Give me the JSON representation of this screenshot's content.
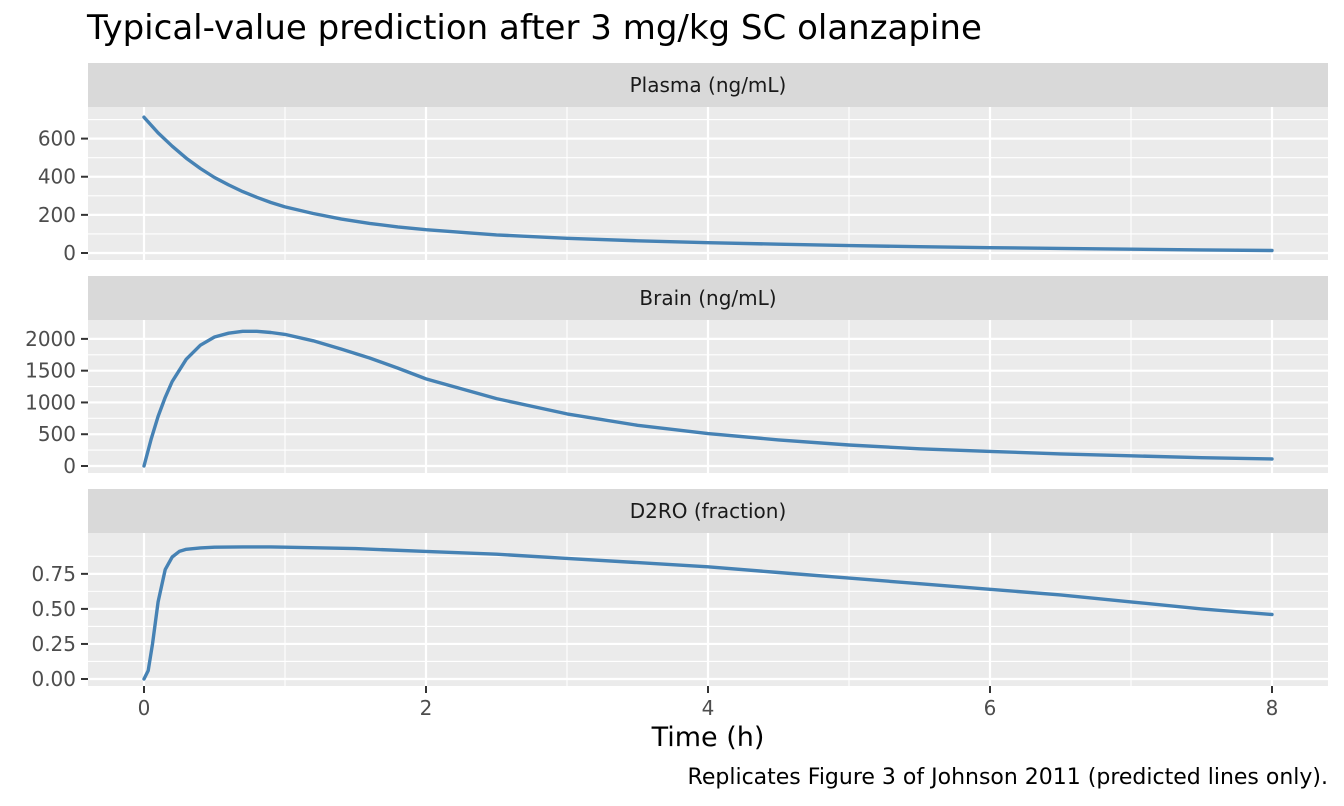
{
  "title": "Typical-value prediction after 3 mg/kg SC olanzapine",
  "xlabel": "Time (h)",
  "caption": "Replicates Figure 3 of Johnson 2011 (predicted lines only).",
  "line_color": "#4682b4",
  "chart_data": [
    {
      "type": "line",
      "panel": "Plasma (ng/mL)",
      "xlim": [
        0,
        8
      ],
      "ylim": [
        0,
        750
      ],
      "x_ticks": [
        0,
        2,
        4,
        6,
        8
      ],
      "y_ticks": [
        0,
        200,
        400,
        600
      ],
      "y_tick_labels": [
        "0",
        "200",
        "400",
        "600"
      ],
      "x": [
        0,
        0.1,
        0.2,
        0.3,
        0.4,
        0.5,
        0.6,
        0.7,
        0.8,
        0.9,
        1.0,
        1.2,
        1.4,
        1.6,
        1.8,
        2.0,
        2.5,
        3.0,
        3.5,
        4.0,
        4.5,
        5.0,
        5.5,
        6.0,
        6.5,
        7.0,
        7.5,
        8.0
      ],
      "y": [
        712,
        630,
        560,
        497,
        443,
        396,
        357,
        322,
        292,
        265,
        242,
        207,
        178,
        155,
        137,
        122,
        95,
        77,
        64,
        54,
        46,
        39,
        33,
        28,
        24,
        20,
        16,
        13
      ]
    },
    {
      "type": "line",
      "panel": "Brain  (ng/mL)",
      "xlim": [
        0,
        8
      ],
      "ylim": [
        0,
        2250
      ],
      "x_ticks": [
        0,
        2,
        4,
        6,
        8
      ],
      "y_ticks": [
        0,
        500,
        1000,
        1500,
        2000
      ],
      "y_tick_labels": [
        "0",
        "500",
        "1000",
        "1500",
        "2000"
      ],
      "x": [
        0,
        0.05,
        0.1,
        0.15,
        0.2,
        0.3,
        0.4,
        0.5,
        0.6,
        0.7,
        0.8,
        0.9,
        1.0,
        1.2,
        1.4,
        1.6,
        1.8,
        2.0,
        2.5,
        3.0,
        3.5,
        4.0,
        4.5,
        5.0,
        5.5,
        6.0,
        6.5,
        7.0,
        7.5,
        8.0
      ],
      "y": [
        0,
        420,
        780,
        1080,
        1330,
        1680,
        1900,
        2030,
        2090,
        2120,
        2120,
        2100,
        2070,
        1970,
        1840,
        1700,
        1540,
        1370,
        1060,
        820,
        640,
        510,
        410,
        330,
        270,
        230,
        190,
        160,
        130,
        110
      ]
    },
    {
      "type": "line",
      "panel": "D2RO (fraction)",
      "xlim": [
        0,
        8
      ],
      "ylim": [
        0,
        1.02
      ],
      "x_ticks": [
        0,
        2,
        4,
        6,
        8
      ],
      "y_ticks": [
        0,
        0.25,
        0.5,
        0.75
      ],
      "y_tick_labels": [
        "0.00",
        "0.25",
        "0.50",
        "0.75"
      ],
      "x": [
        0,
        0.03,
        0.06,
        0.1,
        0.15,
        0.2,
        0.25,
        0.3,
        0.4,
        0.5,
        0.7,
        0.9,
        1.0,
        1.5,
        2.0,
        2.5,
        3.0,
        3.5,
        4.0,
        4.5,
        5.0,
        5.5,
        6.0,
        6.5,
        7.0,
        7.5,
        8.0
      ],
      "y": [
        0.0,
        0.06,
        0.25,
        0.55,
        0.78,
        0.87,
        0.91,
        0.925,
        0.935,
        0.94,
        0.942,
        0.942,
        0.94,
        0.93,
        0.91,
        0.89,
        0.86,
        0.83,
        0.8,
        0.76,
        0.72,
        0.68,
        0.64,
        0.6,
        0.55,
        0.5,
        0.46
      ]
    }
  ]
}
